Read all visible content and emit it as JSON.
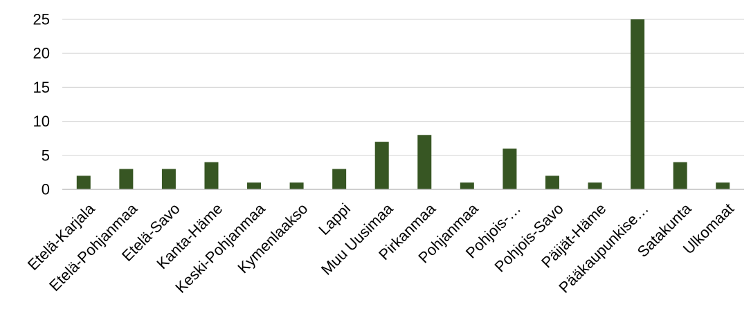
{
  "chart_data": {
    "type": "bar",
    "categories": [
      "Etelä-Karjala",
      "Etelä-Pohjanmaa",
      "Etelä-Savo",
      "Kanta-Häme",
      "Keski-Pohjanmaa",
      "Kymenlaakso",
      "Lappi",
      "Muu Uusimaa",
      "Pirkanmaa",
      "Pohjanmaa",
      "Pohjois-…",
      "Pohjois-Savo",
      "Päijät-Häme",
      "Pääkaupunkise…",
      "Satakunta",
      "Ulkomaat"
    ],
    "values": [
      2,
      3,
      3,
      4,
      1,
      1,
      3,
      7,
      8,
      1,
      6,
      2,
      1,
      25,
      4,
      1
    ],
    "ylim": [
      0,
      25
    ],
    "yticks": [
      0,
      5,
      10,
      15,
      20,
      25
    ],
    "grid": true,
    "bar_color": "#375623",
    "title": "",
    "xlabel": "",
    "ylabel": ""
  }
}
